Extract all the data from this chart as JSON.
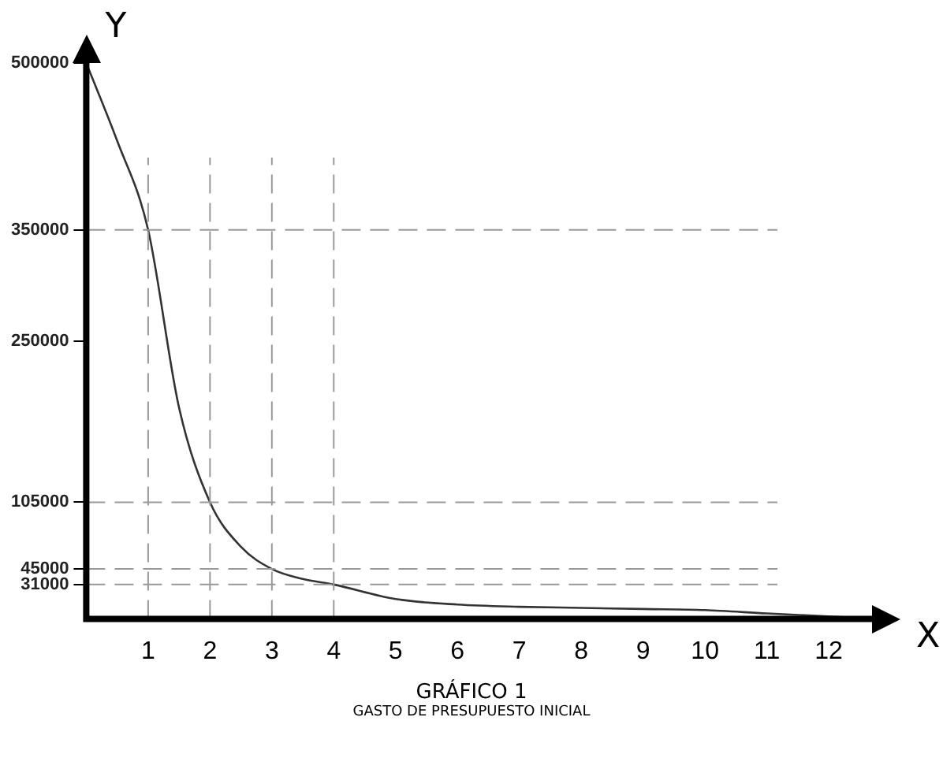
{
  "chart_data": {
    "type": "line",
    "title": "GRÁFICO 1",
    "subtitle": "GASTO DE PRESUPUESTO INICIAL",
    "xlabel": "X",
    "ylabel": "Y",
    "x": [
      0,
      0.5,
      1,
      1.5,
      2,
      2.5,
      3,
      3.5,
      4,
      5,
      6,
      7,
      8,
      9,
      10,
      11,
      12.5
    ],
    "series": [
      {
        "color": "#333333",
        "values": [
          500000,
          430000,
          350000,
          190000,
          105000,
          65000,
          45000,
          36000,
          31000,
          18000,
          13000,
          11000,
          10000,
          9000,
          8000,
          5000,
          1000
        ]
      }
    ],
    "xlim": [
      0,
      12.7
    ],
    "xticks": [
      1,
      2,
      3,
      4,
      5,
      6,
      7,
      8,
      9,
      10,
      11,
      12
    ],
    "ylim": [
      0,
      500000
    ],
    "yticks": [
      31000,
      45000,
      105000,
      250000,
      350000,
      500000
    ],
    "ref_lines": [
      {
        "axis": "x",
        "value": 1,
        "line_style": "dashed",
        "color": "#999999"
      },
      {
        "axis": "x",
        "value": 2,
        "line_style": "dashed",
        "color": "#999999"
      },
      {
        "axis": "x",
        "value": 3,
        "line_style": "dashed",
        "color": "#999999"
      },
      {
        "axis": "x",
        "value": 4,
        "line_style": "dashed",
        "color": "#999999"
      },
      {
        "axis": "y",
        "value": 350000,
        "line_style": "dashed",
        "color": "#999999"
      },
      {
        "axis": "y",
        "value": 105000,
        "line_style": "dashed",
        "color": "#999999"
      },
      {
        "axis": "y",
        "value": 45000,
        "line_style": "dashed",
        "color": "#999999"
      },
      {
        "axis": "y",
        "value": 31000,
        "line_style": "dashed",
        "color": "#999999"
      }
    ],
    "grid": false,
    "legend": false,
    "marker": "none",
    "line_style": "solid"
  }
}
